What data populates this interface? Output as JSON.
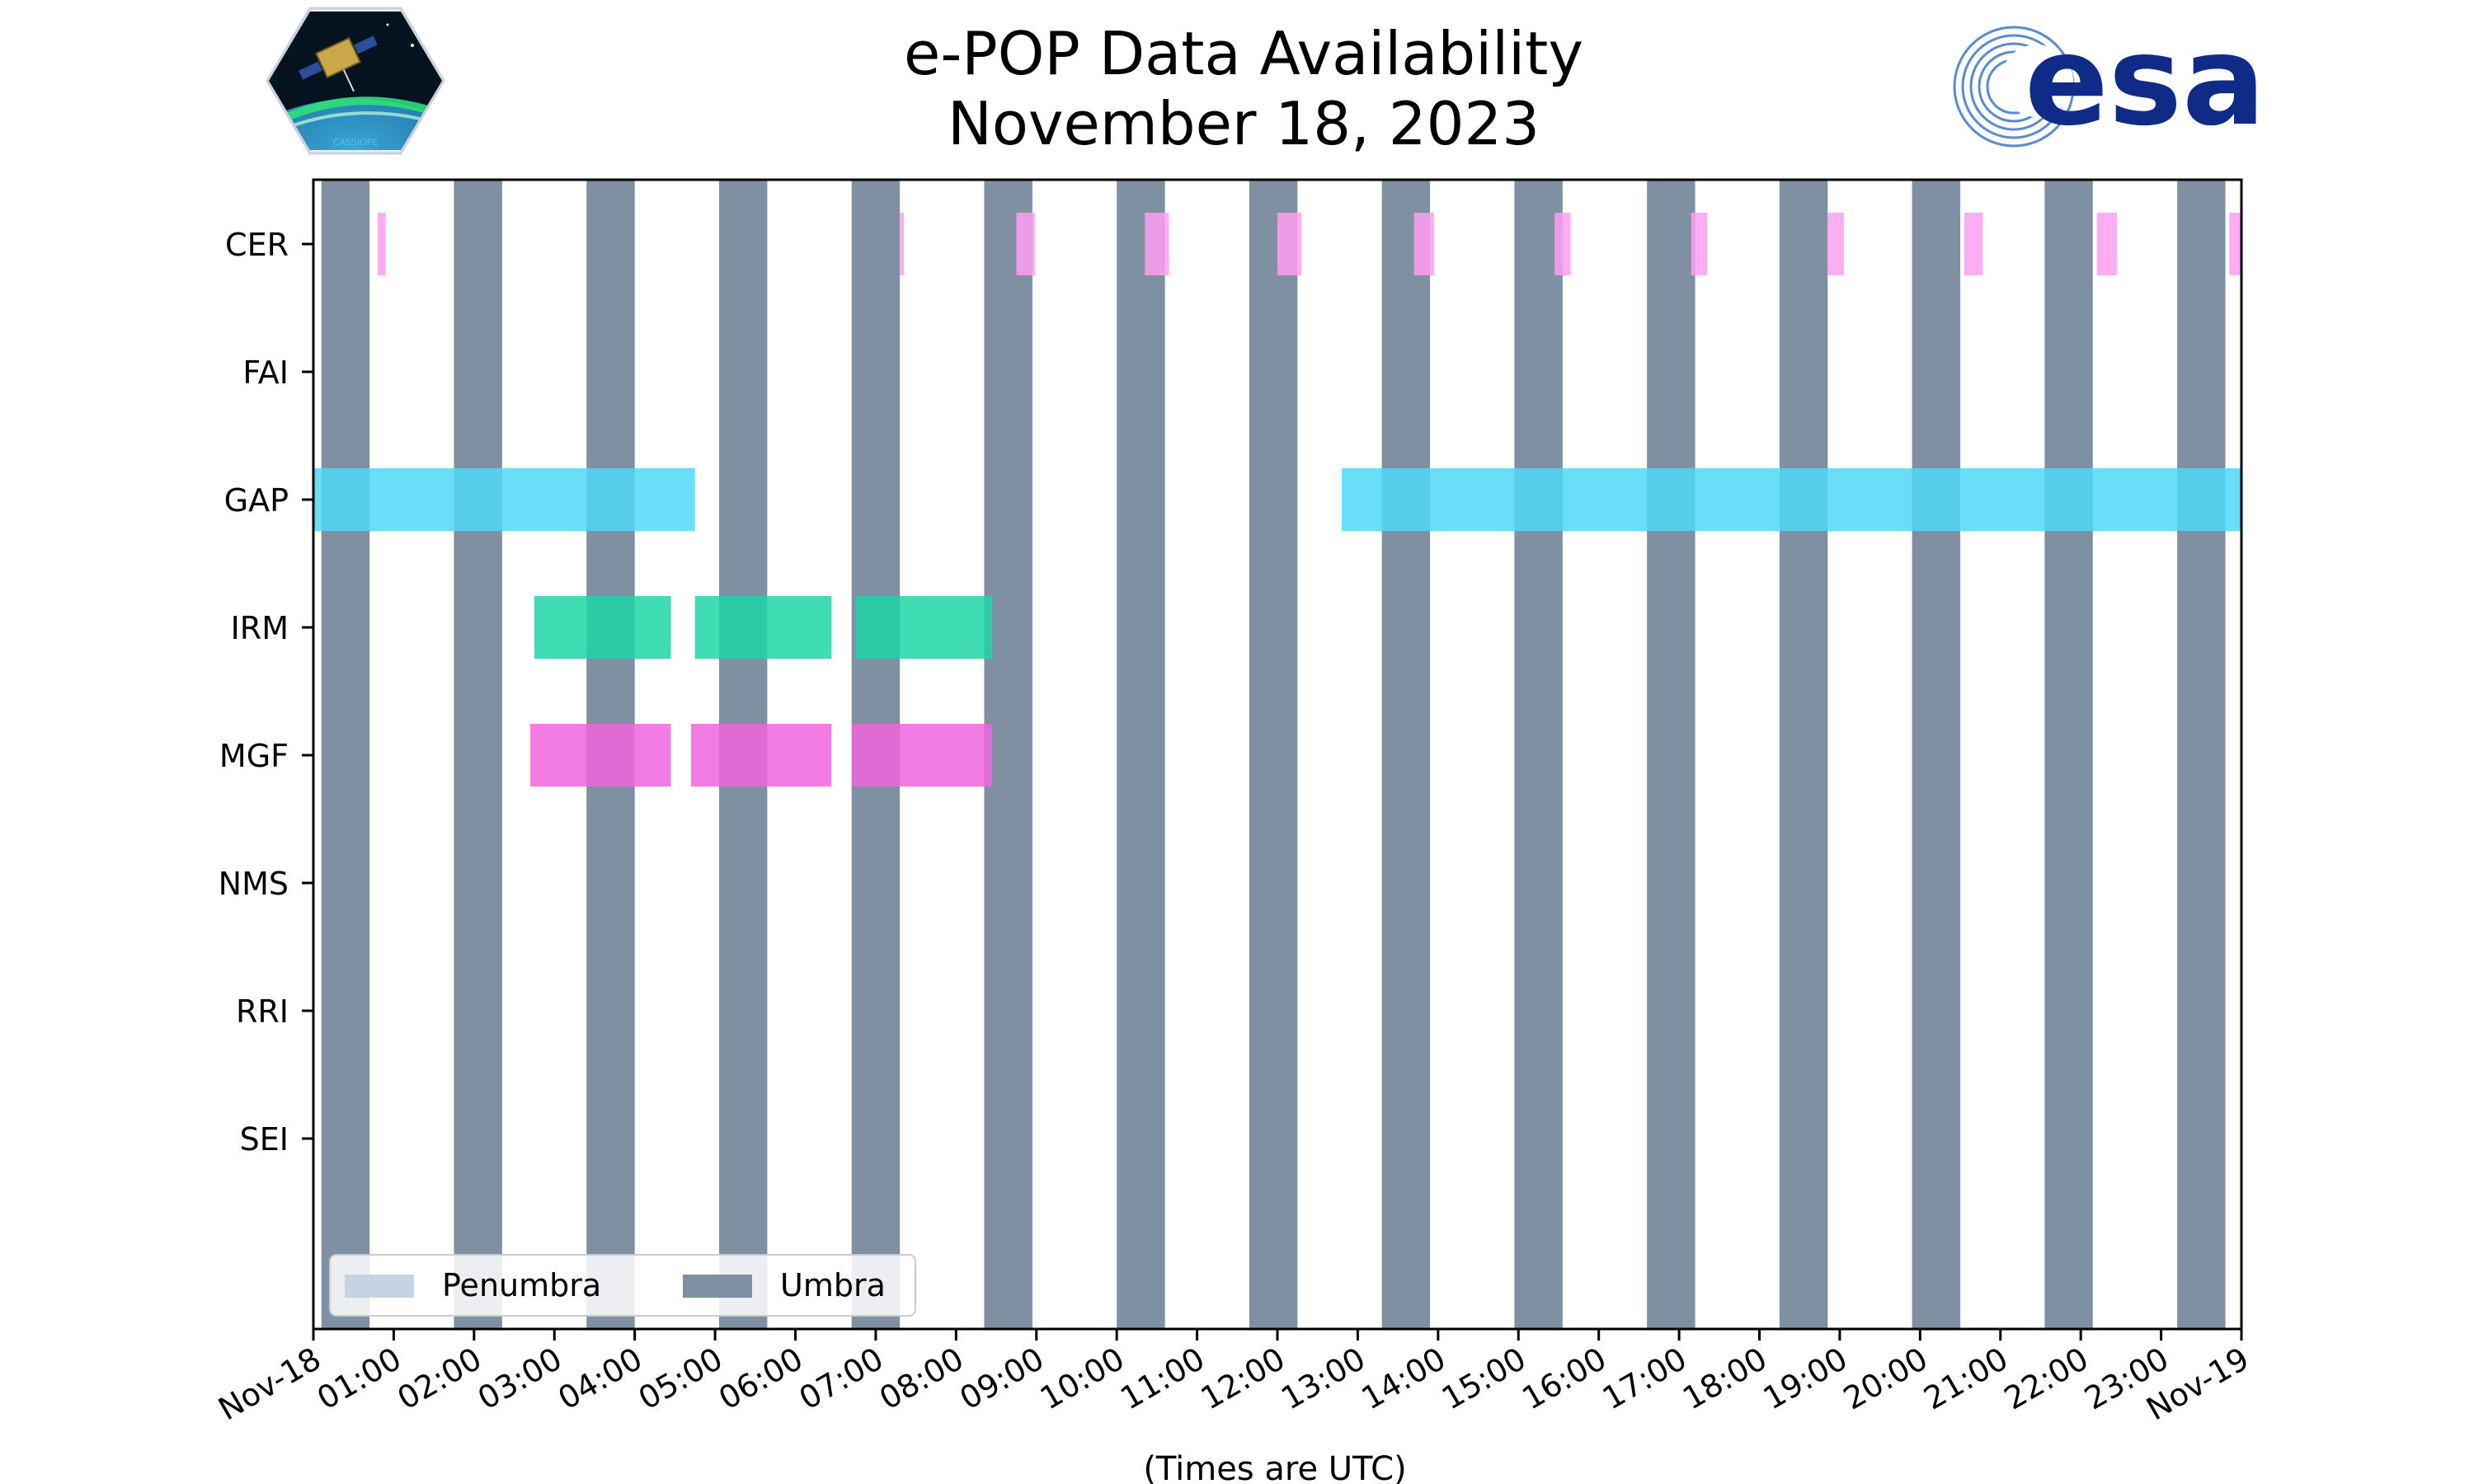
{
  "chart_data": {
    "type": "timeline",
    "title_line1": "e-POP Data Availability",
    "title_line2": "November 18, 2023",
    "xlabel": "(Times are UTC)",
    "x_unit": "hours",
    "xlim": [
      0,
      24
    ],
    "x_tick_labels": [
      "Nov-18",
      "01:00",
      "02:00",
      "03:00",
      "04:00",
      "05:00",
      "06:00",
      "07:00",
      "08:00",
      "09:00",
      "10:00",
      "11:00",
      "12:00",
      "13:00",
      "14:00",
      "15:00",
      "16:00",
      "17:00",
      "18:00",
      "19:00",
      "20:00",
      "21:00",
      "22:00",
      "23:00",
      "Nov-19"
    ],
    "instruments": [
      "CER",
      "FAI",
      "GAP",
      "IRM",
      "MGF",
      "NMS",
      "RRI",
      "SEI"
    ],
    "umbra_intervals": [
      [
        0.1,
        0.7
      ],
      [
        1.75,
        2.35
      ],
      [
        3.4,
        4.0
      ],
      [
        5.05,
        5.65
      ],
      [
        6.7,
        7.3
      ],
      [
        8.35,
        8.95
      ],
      [
        10.0,
        10.6
      ],
      [
        11.65,
        12.25
      ],
      [
        13.3,
        13.9
      ],
      [
        14.95,
        15.55
      ],
      [
        16.6,
        17.2
      ],
      [
        18.25,
        18.85
      ],
      [
        19.9,
        20.5
      ],
      [
        21.55,
        22.15
      ],
      [
        23.2,
        23.8
      ]
    ],
    "series": [
      {
        "name": "CER",
        "color": "#ff9ff0",
        "opacity": 0.85,
        "intervals": [
          [
            0.8,
            0.9
          ],
          [
            7.3,
            7.35
          ],
          [
            8.75,
            8.98
          ],
          [
            10.35,
            10.65
          ],
          [
            12.0,
            12.3
          ],
          [
            13.7,
            13.95
          ],
          [
            15.45,
            15.65
          ],
          [
            17.15,
            17.35
          ],
          [
            18.85,
            19.05
          ],
          [
            20.55,
            20.78
          ],
          [
            22.2,
            22.45
          ],
          [
            23.85,
            24.0
          ]
        ]
      },
      {
        "name": "FAI",
        "color": "#ffa500",
        "opacity": 0.85,
        "intervals": []
      },
      {
        "name": "GAP",
        "color": "#4ed8f8",
        "opacity": 0.85,
        "intervals": [
          [
            0.0,
            4.75
          ],
          [
            12.8,
            16.9
          ],
          [
            16.9,
            18.62
          ],
          [
            18.62,
            24.0
          ]
        ]
      },
      {
        "name": "IRM",
        "color": "#1fd6a6",
        "opacity": 0.85,
        "intervals": [
          [
            2.75,
            4.45
          ],
          [
            4.75,
            6.45
          ],
          [
            6.75,
            8.45
          ]
        ]
      },
      {
        "name": "MGF",
        "color": "#f065de",
        "opacity": 0.85,
        "intervals": [
          [
            2.7,
            4.45
          ],
          [
            4.7,
            6.45
          ],
          [
            6.7,
            8.45
          ]
        ]
      },
      {
        "name": "NMS",
        "color": "#888888",
        "opacity": 0.85,
        "intervals": []
      },
      {
        "name": "RRI",
        "color": "#888888",
        "opacity": 0.85,
        "intervals": []
      },
      {
        "name": "SEI",
        "color": "#888888",
        "opacity": 0.85,
        "intervals": []
      }
    ],
    "legend": {
      "position": "lower-left",
      "entries": [
        {
          "label": "Penumbra",
          "color": "#c6d3e3"
        },
        {
          "label": "Umbra",
          "color": "#7f90a3"
        }
      ]
    },
    "umbra_color": "#7f90a3"
  },
  "logos": {
    "mission_text": "CASSIOPE",
    "agency_text": "esa",
    "agency_color": "#0f2a87"
  }
}
